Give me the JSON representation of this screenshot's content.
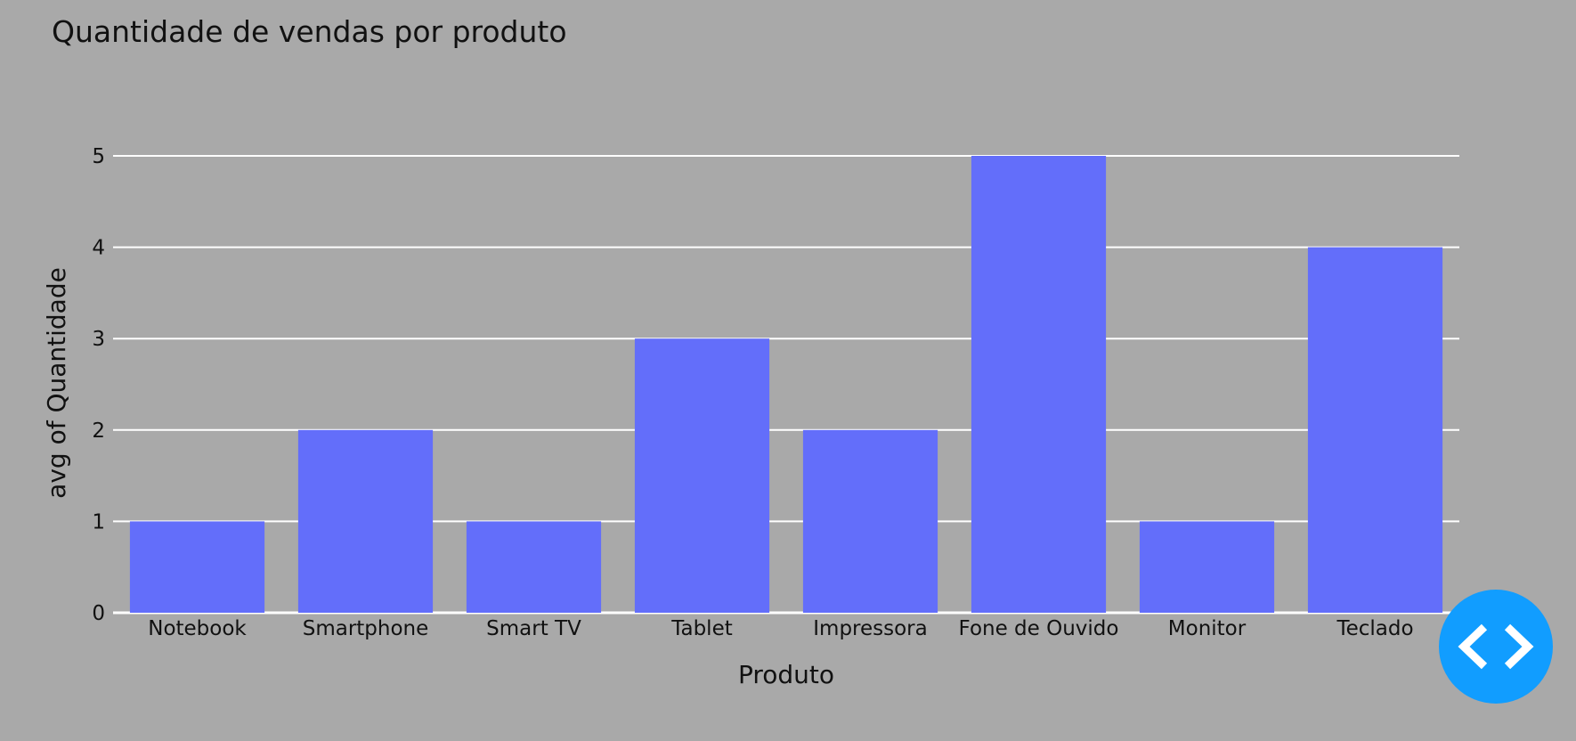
{
  "chart_data": {
    "type": "bar",
    "title": "Quantidade de vendas por produto",
    "xlabel": "Produto",
    "ylabel": "avg of Quantidade",
    "categories": [
      "Notebook",
      "Smartphone",
      "Smart TV",
      "Tablet",
      "Impressora",
      "Fone de Ouvido",
      "Monitor",
      "Teclado"
    ],
    "values": [
      1,
      2,
      1,
      3,
      2,
      5,
      1,
      4
    ],
    "ylim": [
      0,
      5
    ],
    "yticks": [
      "0",
      "1",
      "2",
      "3",
      "4",
      "5"
    ],
    "grid": true,
    "colors": {
      "bar": "#636efa",
      "background": "#a9a9a9",
      "grid": "#ffffff"
    }
  },
  "controls": {
    "code_toggle_icon": "code-brackets-icon",
    "code_toggle_color": "#119dff"
  }
}
